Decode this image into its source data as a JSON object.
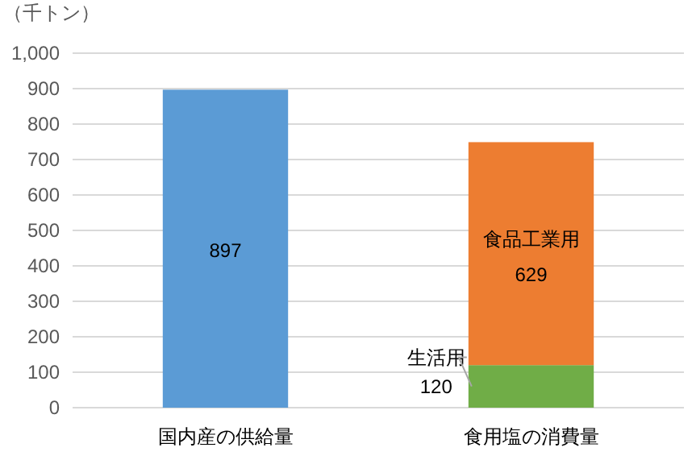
{
  "chart_data": {
    "type": "bar",
    "stacked": true,
    "ylabel": "（千トン）",
    "categories": [
      "国内産の供給量",
      "食用塩の消費量"
    ],
    "series": [
      {
        "color": "#5b9bd5",
        "values": [
          897,
          null
        ]
      },
      {
        "name": "生活用",
        "color": "#70ad47",
        "values": [
          null,
          120
        ]
      },
      {
        "name": "食品工業用",
        "color": "#ed7d31",
        "values": [
          null,
          629
        ]
      }
    ],
    "ylim": [
      0,
      1000
    ],
    "yticks": [
      0,
      100,
      200,
      300,
      400,
      500,
      600,
      700,
      800,
      900,
      {
        "value": 1000,
        "label": "1,000"
      }
    ],
    "grid": "y",
    "data_labels": true
  }
}
